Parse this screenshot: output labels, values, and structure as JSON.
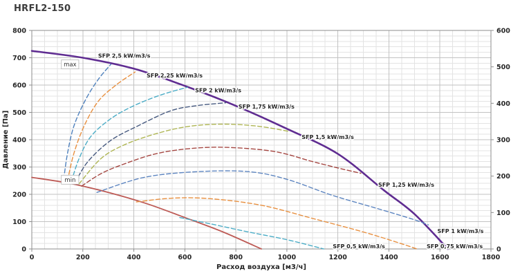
{
  "page": {
    "title": "HRFL2-150"
  },
  "chart_data": {
    "type": "line",
    "title": "HRFL2-150",
    "xlabel": "Расход воздуха [м3/ч]",
    "ylabel_left": "Давление [Па]",
    "ylabel_right": "",
    "x_axis": {
      "min": 0,
      "max": 1800,
      "major_step": 200,
      "minor_step": 50,
      "ticks": [
        0,
        200,
        400,
        600,
        800,
        1000,
        1200,
        1400,
        1600,
        1800
      ]
    },
    "y_axis_left": {
      "min": 0,
      "max": 800,
      "major_step": 100,
      "minor_step": 20,
      "ticks": [
        0,
        100,
        200,
        300,
        400,
        500,
        600,
        700,
        800
      ]
    },
    "y_axis_right": {
      "min": 0,
      "max": 600,
      "major_step": 100,
      "ticks": [
        0,
        100,
        200,
        300,
        400,
        500,
        600
      ]
    },
    "grid": {
      "minor_color": "#e3e3e3",
      "major_color": "#c2c2c2",
      "border_color": "#8c8c8c"
    },
    "series": [
      {
        "name": "max",
        "label": "max",
        "style": "solid",
        "color": "#5f2c91",
        "width": 2.6,
        "label_pos": [
          150,
          668
        ],
        "label_style": "boxed",
        "points": [
          [
            0,
            725
          ],
          [
            200,
            700
          ],
          [
            400,
            660
          ],
          [
            600,
            597
          ],
          [
            800,
            524
          ],
          [
            1000,
            440
          ],
          [
            1200,
            348
          ],
          [
            1380,
            215
          ],
          [
            1500,
            128
          ],
          [
            1631,
            0
          ]
        ]
      },
      {
        "name": "min",
        "label": "min",
        "style": "solid",
        "color": "#bd5a55",
        "width": 1.8,
        "label_pos": [
          150,
          246
        ],
        "label_style": "boxed",
        "points": [
          [
            0,
            262
          ],
          [
            150,
            240
          ],
          [
            300,
            207
          ],
          [
            450,
            166
          ],
          [
            600,
            115
          ],
          [
            750,
            62
          ],
          [
            900,
            0
          ]
        ]
      },
      {
        "name": "sfp-2-5",
        "label": "SFP 2,5 kW/m3/s",
        "style": "dashed",
        "color": "#4f81bd",
        "width": 1.4,
        "label_pos": [
          260,
          700
        ],
        "label_style": "plain",
        "points": [
          [
            125,
            255
          ],
          [
            140,
            350
          ],
          [
            165,
            450
          ],
          [
            210,
            545
          ],
          [
            260,
            620
          ],
          [
            310,
            676
          ]
        ]
      },
      {
        "name": "sfp-2-25",
        "label": "SFP 2,25 kW/m3/s",
        "style": "dashed",
        "color": "#e89040",
        "width": 1.4,
        "label_pos": [
          450,
          628
        ],
        "label_style": "plain",
        "points": [
          [
            140,
            250
          ],
          [
            165,
            350
          ],
          [
            205,
            450
          ],
          [
            260,
            540
          ],
          [
            330,
            600
          ],
          [
            405,
            648
          ]
        ]
      },
      {
        "name": "sfp-2",
        "label": "SFP 2 kW/m3/s",
        "style": "dashed",
        "color": "#4bacc6",
        "width": 1.4,
        "label_pos": [
          640,
          574
        ],
        "label_style": "plain",
        "points": [
          [
            155,
            247
          ],
          [
            185,
            330
          ],
          [
            230,
            410
          ],
          [
            304,
            473
          ],
          [
            390,
            520
          ],
          [
            500,
            562
          ],
          [
            610,
            592
          ]
        ]
      },
      {
        "name": "sfp-1-75",
        "label": "SFP 1,75 kW/m3/s",
        "style": "dashed",
        "color": "#46597f",
        "width": 1.4,
        "label_pos": [
          810,
          514
        ],
        "label_style": "plain",
        "points": [
          [
            170,
            243
          ],
          [
            220,
            320
          ],
          [
            309,
            397
          ],
          [
            417,
            451
          ],
          [
            545,
            506
          ],
          [
            650,
            525
          ],
          [
            760,
            535
          ]
        ]
      },
      {
        "name": "sfp-1-5",
        "label": "SFP 1,5 kW/m3/s",
        "style": "dashed",
        "color": "#aeb553",
        "width": 1.4,
        "label_pos": [
          1058,
          402
        ],
        "label_style": "plain",
        "points": [
          [
            185,
            238
          ],
          [
            270,
            330
          ],
          [
            360,
            380
          ],
          [
            480,
            420
          ],
          [
            610,
            448
          ],
          [
            750,
            457
          ],
          [
            890,
            449
          ],
          [
            1010,
            430
          ]
        ]
      },
      {
        "name": "sfp-1-25",
        "label": "SFP 1,25 kW/m3/s",
        "style": "dashed",
        "color": "#a54742",
        "width": 1.4,
        "label_pos": [
          1358,
          228
        ],
        "label_style": "plain",
        "points": [
          [
            195,
            230
          ],
          [
            270,
            275
          ],
          [
            350,
            307
          ],
          [
            480,
            347
          ],
          [
            615,
            367
          ],
          [
            760,
            372
          ],
          [
            950,
            357
          ],
          [
            1100,
            320
          ],
          [
            1220,
            292
          ],
          [
            1290,
            277
          ]
        ]
      },
      {
        "name": "sfp-1",
        "label": "SFP 1 kW/m3/s",
        "style": "dashed",
        "color": "#5d85c0",
        "width": 1.4,
        "label_pos": [
          1590,
          58
        ],
        "label_style": "plain",
        "points": [
          [
            255,
            207
          ],
          [
            440,
            262
          ],
          [
            650,
            283
          ],
          [
            850,
            283
          ],
          [
            1000,
            255
          ],
          [
            1176,
            197
          ],
          [
            1340,
            152
          ],
          [
            1490,
            110
          ],
          [
            1555,
            88
          ]
        ]
      },
      {
        "name": "sfp-0-75",
        "label": "SFP 0,75 kW/m3/s",
        "style": "dashed",
        "color": "#e89040",
        "width": 1.4,
        "label_pos": [
          1548,
          3
        ],
        "label_style": "plain",
        "points": [
          [
            410,
            172
          ],
          [
            550,
            186
          ],
          [
            700,
            184
          ],
          [
            900,
            160
          ],
          [
            1100,
            112
          ],
          [
            1300,
            62
          ],
          [
            1440,
            22
          ],
          [
            1510,
            0
          ]
        ]
      },
      {
        "name": "sfp-0-5",
        "label": "SFP 0,5 kW/m3/s",
        "style": "dashed",
        "color": "#4bacc6",
        "width": 1.4,
        "label_pos": [
          1180,
          3
        ],
        "label_style": "plain",
        "points": [
          [
            580,
            115
          ],
          [
            700,
            92
          ],
          [
            850,
            62
          ],
          [
            1000,
            34
          ],
          [
            1145,
            0
          ]
        ]
      }
    ]
  }
}
